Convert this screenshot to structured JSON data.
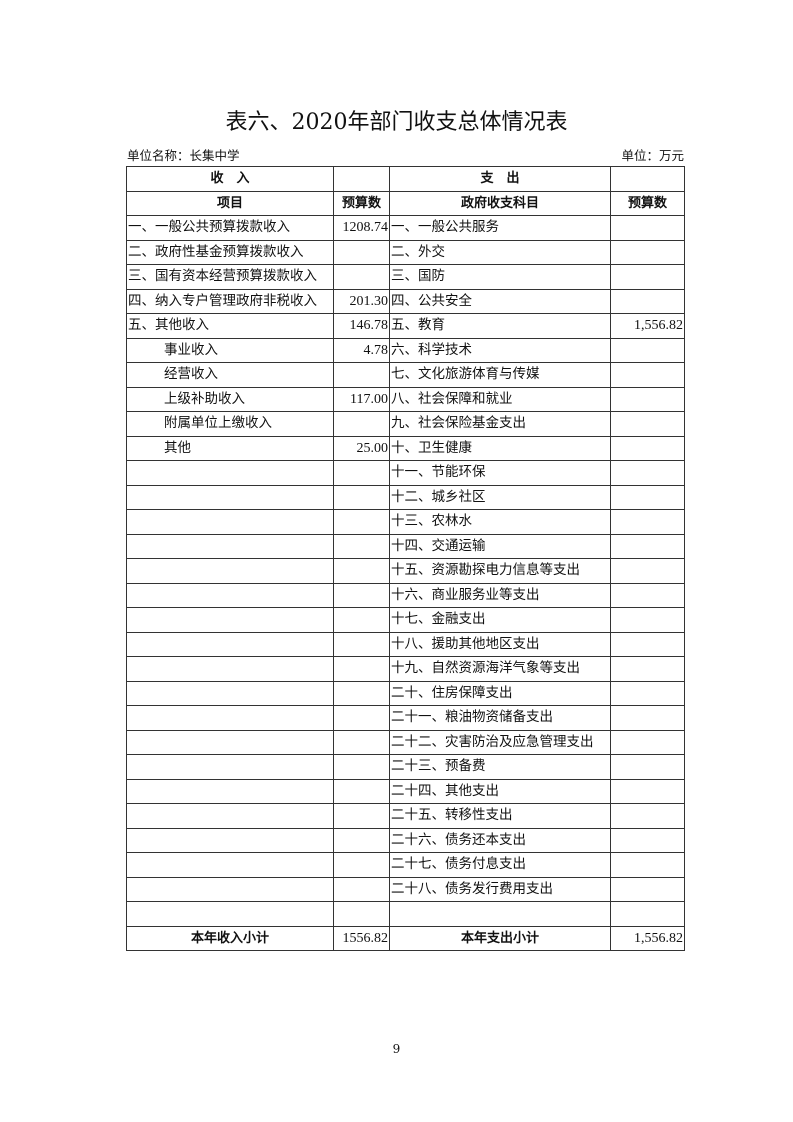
{
  "title": "表六、2020年部门收支总体情况表",
  "unit_name": "单位名称：长集中学",
  "unit": "单位：万元",
  "headers": {
    "income": "收　入",
    "expense": "支　出",
    "item": "项目",
    "budget": "预算数",
    "subject": "政府收支科目",
    "budget2": "预算数"
  },
  "rows": [
    {
      "income": "一、一般公共预算拨款收入",
      "income_value": "1208.74",
      "expense": "一、一般公共服务",
      "expense_value": ""
    },
    {
      "income": "二、政府性基金预算拨款收入",
      "income_value": "",
      "expense": "二、外交",
      "expense_value": ""
    },
    {
      "income": "三、国有资本经营预算拨款收入",
      "income_value": "",
      "expense": "三、国防",
      "expense_value": ""
    },
    {
      "income": "四、纳入专户管理政府非税收入",
      "income_value": "201.30",
      "expense": "四、公共安全",
      "expense_value": ""
    },
    {
      "income": "五、其他收入",
      "income_value": "146.78",
      "expense": "五、教育",
      "expense_value": "1,556.82"
    },
    {
      "income": "事业收入",
      "income_value": "4.78",
      "expense": "六、科学技术",
      "expense_value": "",
      "indent": true
    },
    {
      "income": "经营收入",
      "income_value": "",
      "expense": "七、文化旅游体育与传媒",
      "expense_value": "",
      "indent": true
    },
    {
      "income": "上级补助收入",
      "income_value": "117.00",
      "expense": "八、社会保障和就业",
      "expense_value": "",
      "indent": true
    },
    {
      "income": "附属单位上缴收入",
      "income_value": "",
      "expense": "九、社会保险基金支出",
      "expense_value": "",
      "indent": true
    },
    {
      "income": "其他",
      "income_value": "25.00",
      "expense": "十、卫生健康",
      "expense_value": "",
      "indent": true
    },
    {
      "income": "",
      "income_value": "",
      "expense": "十一、节能环保",
      "expense_value": ""
    },
    {
      "income": "",
      "income_value": "",
      "expense": "十二、城乡社区",
      "expense_value": ""
    },
    {
      "income": "",
      "income_value": "",
      "expense": "十三、农林水",
      "expense_value": ""
    },
    {
      "income": "",
      "income_value": "",
      "expense": "十四、交通运输",
      "expense_value": ""
    },
    {
      "income": "",
      "income_value": "",
      "expense": "十五、资源勘探电力信息等支出",
      "expense_value": ""
    },
    {
      "income": "",
      "income_value": "",
      "expense": "十六、商业服务业等支出",
      "expense_value": ""
    },
    {
      "income": "",
      "income_value": "",
      "expense": "十七、金融支出",
      "expense_value": ""
    },
    {
      "income": "",
      "income_value": "",
      "expense": "十八、援助其他地区支出",
      "expense_value": ""
    },
    {
      "income": "",
      "income_value": "",
      "expense": "十九、自然资源海洋气象等支出",
      "expense_value": ""
    },
    {
      "income": "",
      "income_value": "",
      "expense": "二十、住房保障支出",
      "expense_value": ""
    },
    {
      "income": "",
      "income_value": "",
      "expense": "二十一、粮油物资储备支出",
      "expense_value": ""
    },
    {
      "income": "",
      "income_value": "",
      "expense": "二十二、灾害防治及应急管理支出",
      "expense_value": ""
    },
    {
      "income": "",
      "income_value": "",
      "expense": "二十三、预备费",
      "expense_value": ""
    },
    {
      "income": "",
      "income_value": "",
      "expense": "二十四、其他支出",
      "expense_value": ""
    },
    {
      "income": "",
      "income_value": "",
      "expense": "二十五、转移性支出",
      "expense_value": ""
    },
    {
      "income": "",
      "income_value": "",
      "expense": "二十六、债务还本支出",
      "expense_value": ""
    },
    {
      "income": "",
      "income_value": "",
      "expense": "二十七、债务付息支出",
      "expense_value": ""
    },
    {
      "income": "",
      "income_value": "",
      "expense": "二十八、债务发行费用支出",
      "expense_value": ""
    },
    {
      "income": "",
      "income_value": "",
      "expense": "",
      "expense_value": ""
    }
  ],
  "totals": {
    "income_label": "本年收入小计",
    "income_value": "1556.82",
    "expense_label": "本年支出小计",
    "expense_value": "1,556.82"
  },
  "page_number": "9"
}
